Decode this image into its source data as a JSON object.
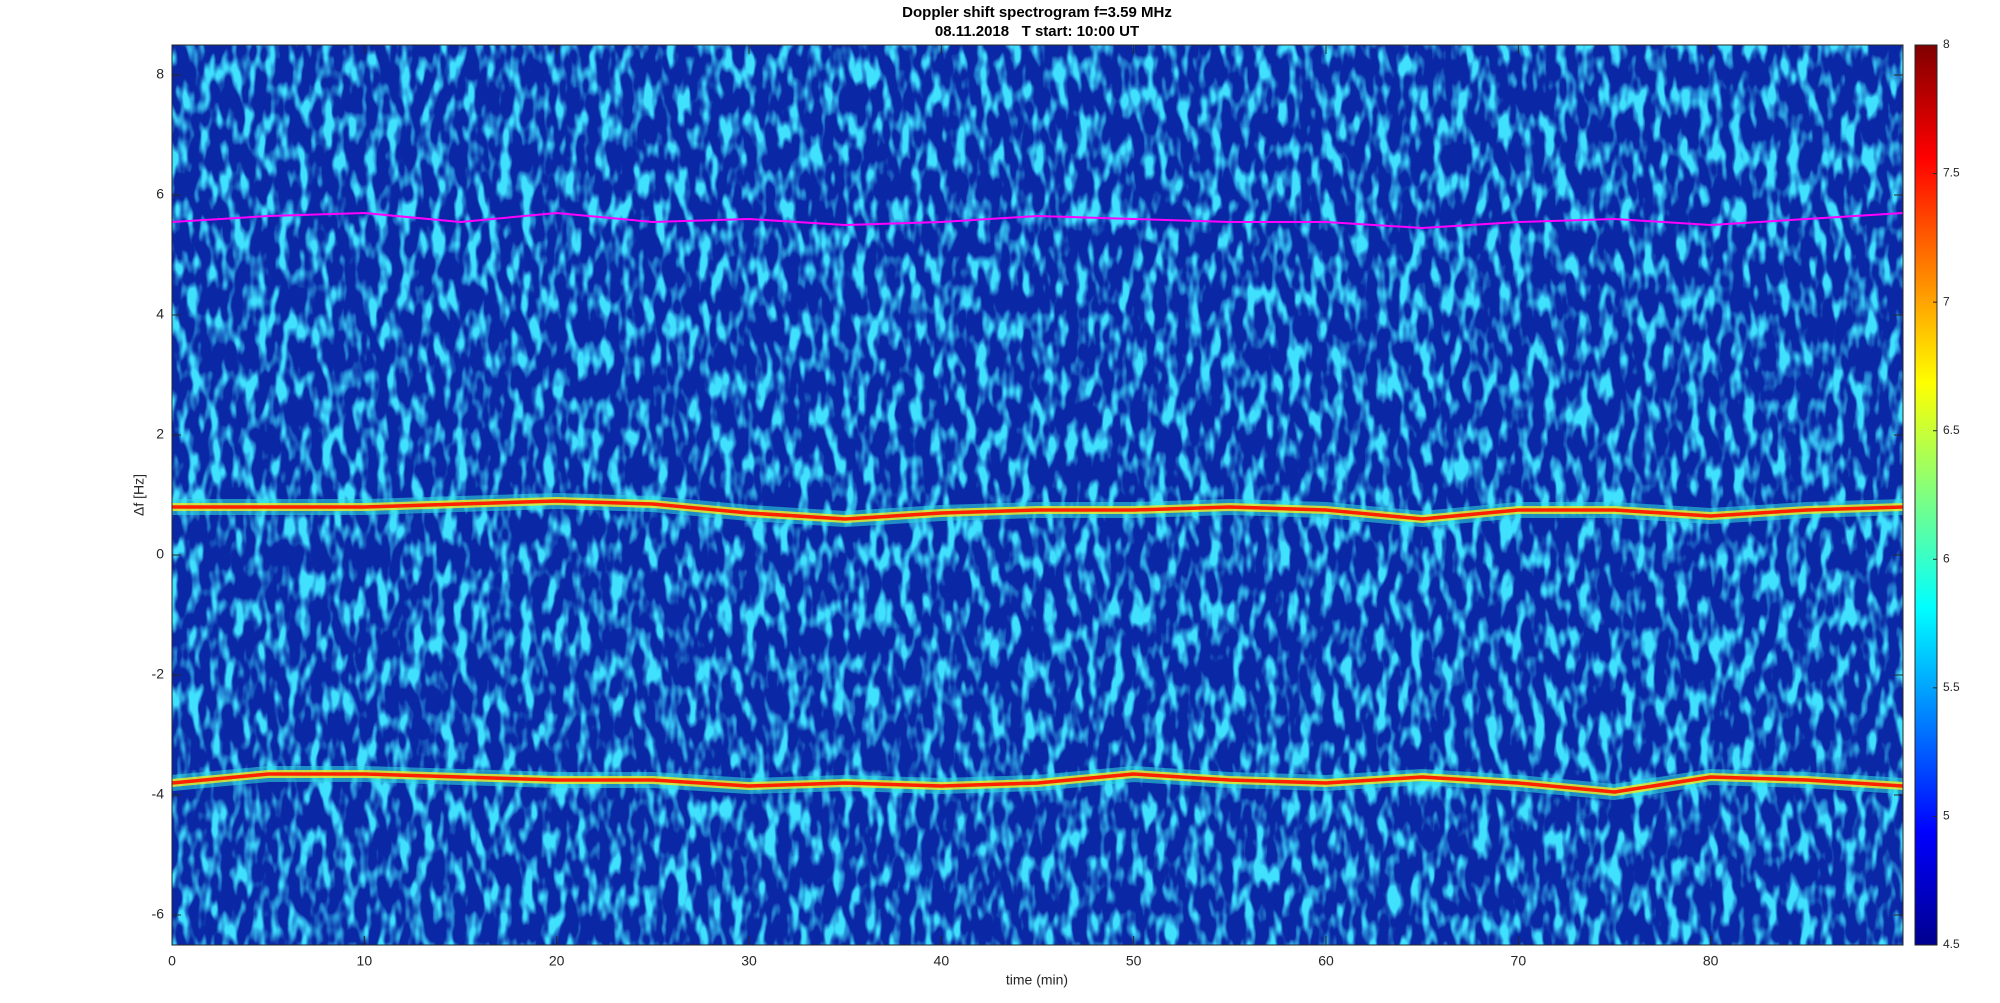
{
  "chart_data": {
    "type": "spectrogram",
    "title": "Doppler shift spectrogram f=3.59 MHz",
    "subtitle": "08.11.2018   T start: 10:00 UT",
    "xlabel": "time (min)",
    "ylabel": "Δf [Hz]",
    "xlim": [
      0,
      90
    ],
    "xticks": [
      0,
      10,
      20,
      30,
      40,
      50,
      60,
      70,
      80
    ],
    "ylim": [
      -6.5,
      8.5
    ],
    "yticks": [
      -6,
      -4,
      -2,
      0,
      2,
      4,
      6,
      8
    ],
    "clim": [
      4.5,
      8
    ],
    "cticks": [
      4.5,
      5,
      5.5,
      6,
      6.5,
      7,
      7.5,
      8
    ],
    "colormap": "jet",
    "x": [
      0,
      5,
      10,
      15,
      20,
      25,
      30,
      35,
      40,
      45,
      50,
      55,
      60,
      65,
      70,
      75,
      80,
      85,
      90
    ],
    "series": [
      {
        "color": "#ff00ff",
        "values": [
          5.55,
          5.65,
          5.7,
          5.55,
          5.7,
          5.55,
          5.6,
          5.5,
          5.55,
          5.65,
          5.6,
          5.55,
          5.55,
          5.45,
          5.55,
          5.6,
          5.5,
          5.6,
          5.7
        ]
      },
      {
        "color": "#ff2000",
        "values": [
          0.8,
          0.8,
          0.8,
          0.85,
          0.9,
          0.85,
          0.7,
          0.6,
          0.7,
          0.75,
          0.75,
          0.8,
          0.75,
          0.6,
          0.75,
          0.75,
          0.65,
          0.75,
          0.8
        ]
      },
      {
        "color": "#ff2000",
        "values": [
          -3.8,
          -3.65,
          -3.65,
          -3.7,
          -3.75,
          -3.75,
          -3.85,
          -3.8,
          -3.85,
          -3.8,
          -3.65,
          -3.75,
          -3.8,
          -3.7,
          -3.8,
          -3.95,
          -3.7,
          -3.75,
          -3.85
        ]
      }
    ]
  }
}
